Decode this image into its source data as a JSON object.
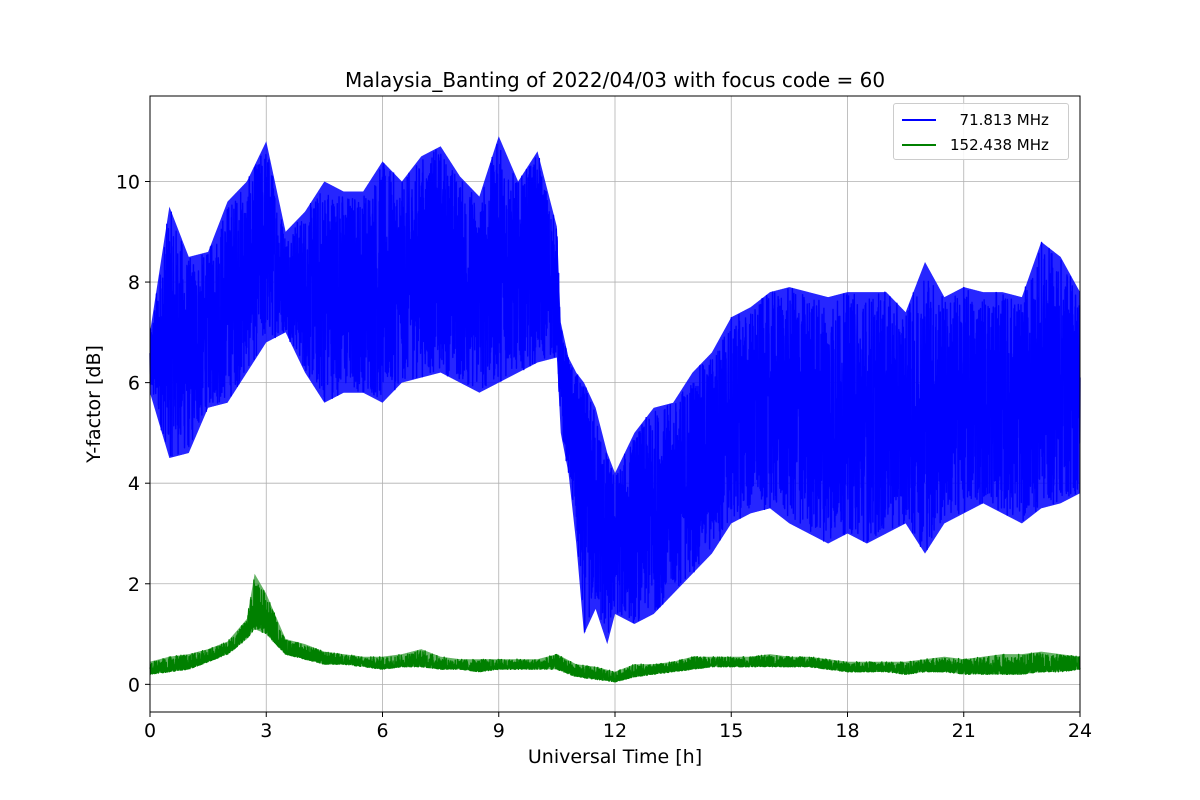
{
  "chart_data": {
    "type": "line",
    "title": "Malaysia_Banting of 2022/04/03 with focus code = 60",
    "xlabel": "Universal Time [h]",
    "ylabel": "Y-factor [dB]",
    "xlim": [
      0,
      24
    ],
    "ylim": [
      -0.55,
      11.7
    ],
    "xticks": [
      0,
      3,
      6,
      9,
      12,
      15,
      18,
      21,
      24
    ],
    "xtick_labels": [
      "0",
      "3",
      "6",
      "9",
      "12",
      "15",
      "18",
      "21",
      "24"
    ],
    "yticks": [
      0,
      2,
      4,
      6,
      8,
      10
    ],
    "ytick_labels": [
      "0",
      "2",
      "4",
      "6",
      "8",
      "10"
    ],
    "grid": true,
    "legend_position": "top-right",
    "series": [
      {
        "name": "  71.813 MHz",
        "color": "#0000ff",
        "x": [
          0,
          0.5,
          1,
          1.5,
          2,
          2.5,
          3,
          3.5,
          4,
          4.5,
          5,
          5.5,
          6,
          6.5,
          7,
          7.5,
          8,
          8.5,
          9,
          9.5,
          10,
          10.5,
          10.6,
          10.8,
          11,
          11.2,
          11.5,
          11.8,
          12,
          12.5,
          13,
          13.5,
          14,
          14.5,
          15,
          15.5,
          16,
          16.5,
          17,
          17.5,
          18,
          18.5,
          19,
          19.5,
          20,
          20.5,
          21,
          21.5,
          22,
          22.5,
          23,
          23.5,
          24
        ],
        "y_min": [
          5.8,
          4.5,
          4.6,
          5.5,
          5.6,
          6.2,
          6.8,
          7.0,
          6.2,
          5.6,
          5.8,
          5.8,
          5.6,
          6.0,
          6.1,
          6.2,
          6.0,
          5.8,
          6.0,
          6.2,
          6.4,
          6.5,
          5.0,
          4.2,
          2.8,
          1.0,
          1.5,
          0.8,
          1.4,
          1.2,
          1.4,
          1.8,
          2.2,
          2.6,
          3.2,
          3.4,
          3.5,
          3.2,
          3.0,
          2.8,
          3.0,
          2.8,
          3.0,
          3.2,
          2.6,
          3.2,
          3.4,
          3.6,
          3.4,
          3.2,
          3.5,
          3.6,
          3.8
        ],
        "y_max": [
          7.0,
          9.5,
          8.5,
          8.6,
          9.6,
          10.0,
          10.8,
          9.0,
          9.4,
          10.0,
          9.8,
          9.8,
          10.4,
          10.0,
          10.5,
          10.7,
          10.1,
          9.7,
          10.9,
          10.0,
          10.6,
          9.1,
          7.2,
          6.5,
          6.2,
          6.0,
          5.5,
          4.6,
          4.2,
          5.0,
          5.5,
          5.6,
          6.2,
          6.6,
          7.3,
          7.5,
          7.8,
          7.9,
          7.8,
          7.7,
          7.8,
          7.8,
          7.8,
          7.4,
          8.4,
          7.7,
          7.9,
          7.8,
          7.8,
          7.7,
          8.8,
          8.5,
          7.8
        ]
      },
      {
        "name": "152.438 MHz",
        "color": "#008000",
        "x": [
          0,
          0.5,
          1,
          1.5,
          2,
          2.5,
          2.7,
          3,
          3.5,
          4,
          4.5,
          5,
          5.5,
          6,
          6.5,
          7,
          7.5,
          8,
          8.5,
          9,
          9.5,
          10,
          10.5,
          11,
          11.5,
          12,
          12.5,
          13,
          13.5,
          14,
          14.5,
          15,
          15.5,
          16,
          16.5,
          17,
          17.5,
          18,
          18.5,
          19,
          19.5,
          20,
          20.5,
          21,
          21.5,
          22,
          22.5,
          23,
          23.5,
          24
        ],
        "y_min": [
          0.2,
          0.25,
          0.3,
          0.45,
          0.6,
          0.9,
          1.1,
          1.0,
          0.6,
          0.5,
          0.4,
          0.4,
          0.35,
          0.3,
          0.35,
          0.35,
          0.3,
          0.3,
          0.25,
          0.3,
          0.3,
          0.3,
          0.3,
          0.15,
          0.1,
          0.05,
          0.15,
          0.2,
          0.25,
          0.3,
          0.35,
          0.35,
          0.35,
          0.35,
          0.35,
          0.35,
          0.3,
          0.25,
          0.25,
          0.25,
          0.2,
          0.25,
          0.25,
          0.2,
          0.2,
          0.2,
          0.2,
          0.25,
          0.25,
          0.3
        ],
        "y_max": [
          0.45,
          0.55,
          0.6,
          0.7,
          0.85,
          1.3,
          2.2,
          1.8,
          0.9,
          0.8,
          0.65,
          0.6,
          0.55,
          0.55,
          0.6,
          0.7,
          0.55,
          0.5,
          0.5,
          0.5,
          0.5,
          0.5,
          0.6,
          0.4,
          0.35,
          0.25,
          0.4,
          0.4,
          0.45,
          0.55,
          0.55,
          0.55,
          0.55,
          0.6,
          0.55,
          0.55,
          0.5,
          0.45,
          0.45,
          0.45,
          0.45,
          0.5,
          0.55,
          0.5,
          0.55,
          0.6,
          0.6,
          0.65,
          0.6,
          0.55
        ]
      }
    ]
  }
}
